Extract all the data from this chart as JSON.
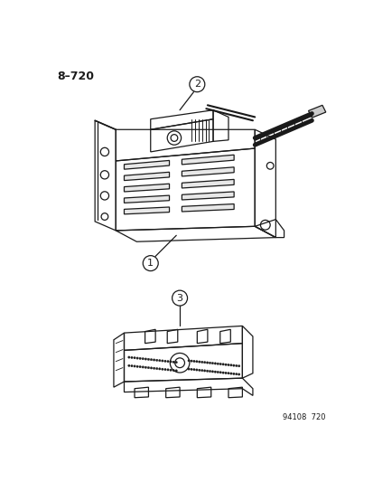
{
  "title": "8–720",
  "footer": "94108  720",
  "bg": "#ffffff",
  "lc": "#1a1a1a",
  "fig_w": 4.14,
  "fig_h": 5.33,
  "dpi": 100
}
